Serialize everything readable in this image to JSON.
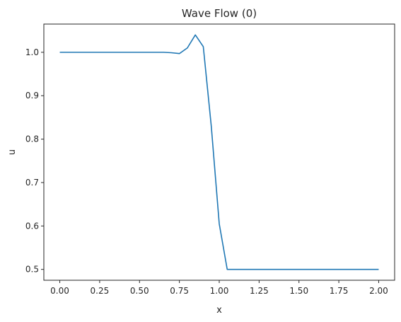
{
  "chart_data": {
    "type": "line",
    "title": "Wave Flow (0)",
    "xlabel": "x",
    "ylabel": "u",
    "xlim": [
      -0.1,
      2.1
    ],
    "ylim": [
      0.475,
      1.065
    ],
    "xticks": [
      0.0,
      0.25,
      0.5,
      0.75,
      1.0,
      1.25,
      1.5,
      1.75,
      2.0
    ],
    "xtick_labels": [
      "0.00",
      "0.25",
      "0.50",
      "0.75",
      "1.00",
      "1.25",
      "1.50",
      "1.75",
      "2.00"
    ],
    "yticks": [
      0.5,
      0.6,
      0.7,
      0.8,
      0.9,
      1.0
    ],
    "ytick_labels": [
      "0.5",
      "0.6",
      "0.7",
      "0.8",
      "0.9",
      "1.0"
    ],
    "grid": false,
    "series": [
      {
        "color": "#1f77b4",
        "x": [
          0.0,
          0.05,
          0.1,
          0.15,
          0.2,
          0.25,
          0.3,
          0.35,
          0.4,
          0.45,
          0.5,
          0.55,
          0.6,
          0.65,
          0.7,
          0.75,
          0.8,
          0.85,
          0.9,
          0.95,
          1.0,
          1.05,
          1.1,
          1.15,
          1.2,
          1.25,
          1.3,
          1.35,
          1.4,
          1.45,
          1.5,
          1.55,
          1.6,
          1.65,
          1.7,
          1.75,
          1.8,
          1.85,
          1.9,
          1.95,
          2.0
        ],
        "y": [
          1.0,
          1.0,
          1.0,
          1.0,
          1.0,
          1.0,
          1.0,
          1.0,
          1.0,
          1.0,
          1.0,
          1.0,
          1.0,
          1.0,
          0.999,
          0.997,
          1.01,
          1.04,
          1.013,
          0.83,
          0.605,
          0.5,
          0.5,
          0.5,
          0.5,
          0.5,
          0.5,
          0.5,
          0.5,
          0.5,
          0.5,
          0.5,
          0.5,
          0.5,
          0.5,
          0.5,
          0.5,
          0.5,
          0.5,
          0.5,
          0.5
        ]
      }
    ]
  }
}
